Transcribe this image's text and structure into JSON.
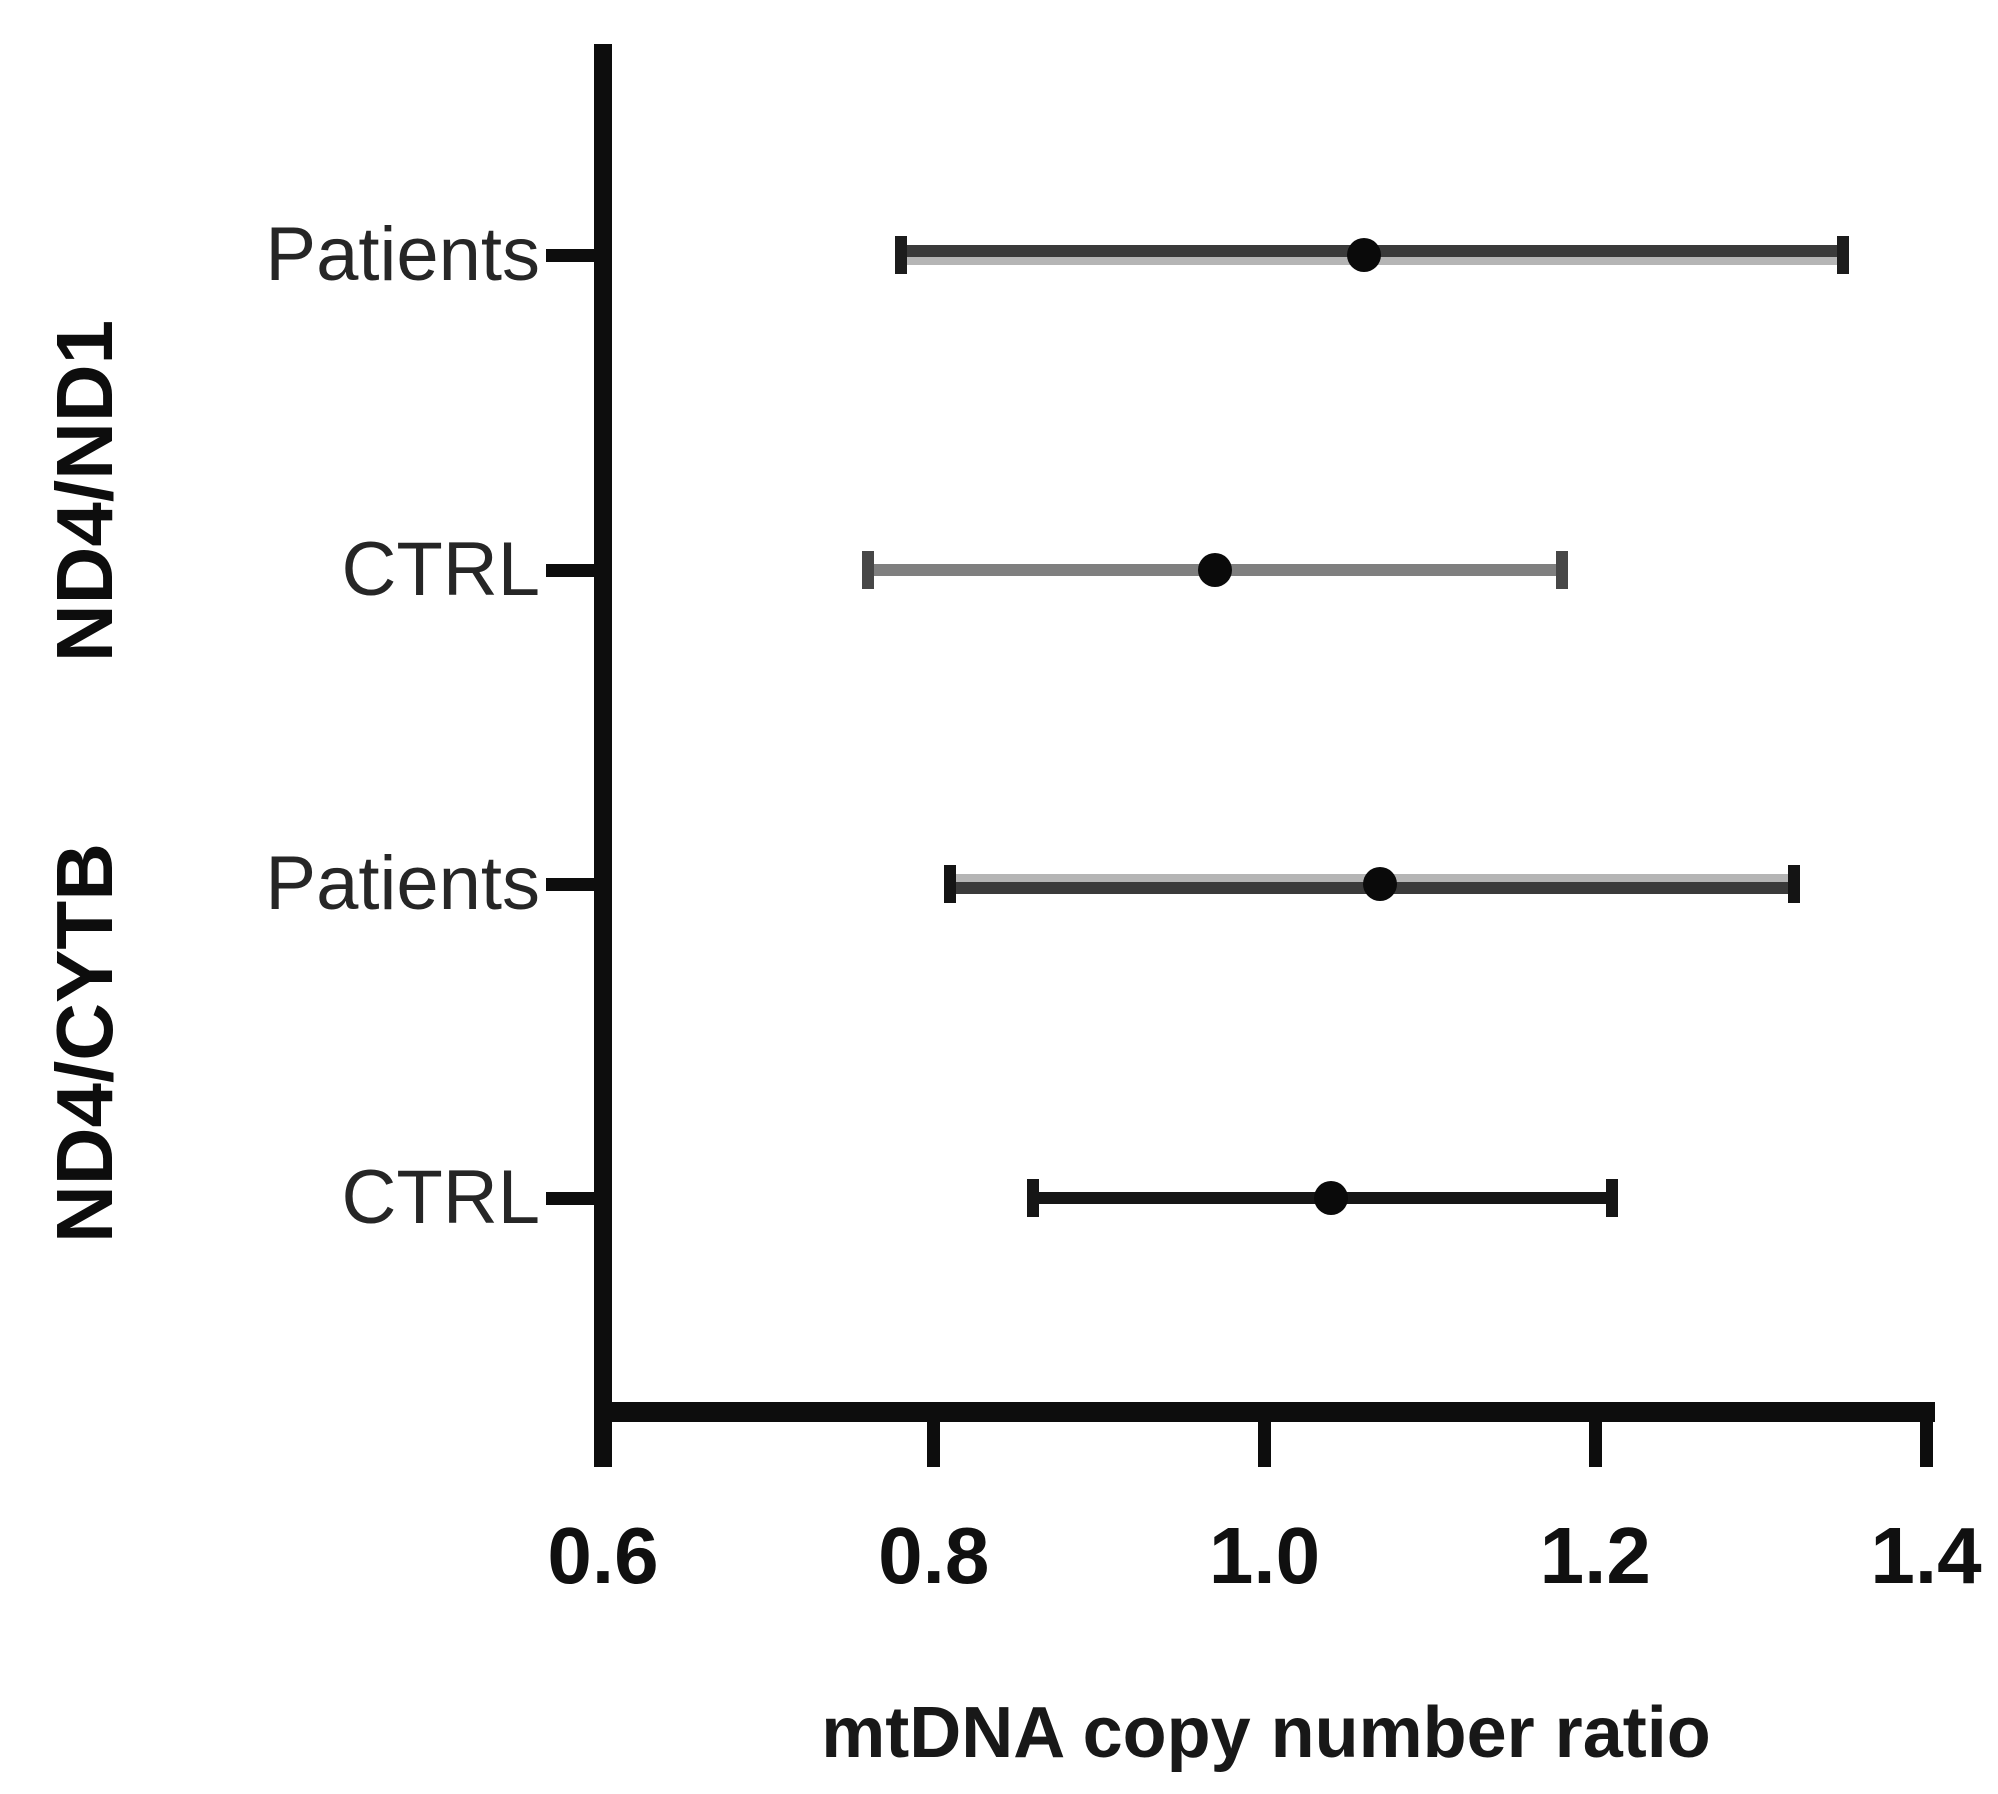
{
  "figure": {
    "background": "#ffffff",
    "axis_color": "#0d0d0d"
  },
  "chart_data": {
    "type": "scatter",
    "subtype": "horizontal-forest-errorbar",
    "title": "",
    "xlabel": "mtDNA copy number ratio",
    "ylabel": "",
    "xlim": [
      0.6,
      1.4
    ],
    "xticks": [
      "0.6",
      "0.8",
      "1.0",
      "1.2",
      "1.4"
    ],
    "grid": false,
    "legend": "none",
    "groups": [
      "ND4/ND1",
      "ND4/CYTB"
    ],
    "series": [
      {
        "group": "ND4/ND1",
        "label": "Patients",
        "mean": 1.06,
        "ci_low": 0.78,
        "ci_high": 1.35,
        "line_color": "#3a3a3a",
        "line_shadow": "#b5b5b5",
        "shadow_side": "bottom",
        "cap_color": "#1c1c1c",
        "marker_color": "#0a0a0a"
      },
      {
        "group": "ND4/ND1",
        "label": "CTRL",
        "mean": 0.97,
        "ci_low": 0.76,
        "ci_high": 1.18,
        "line_color": "#7f7f7f",
        "line_shadow": "",
        "shadow_side": "",
        "cap_color": "#474747",
        "marker_color": "#0a0a0a"
      },
      {
        "group": "ND4/CYTB",
        "label": "Patients",
        "mean": 1.07,
        "ci_low": 0.81,
        "ci_high": 1.32,
        "line_color": "#3a3a3a",
        "line_shadow": "#b5b5b5",
        "shadow_side": "top",
        "cap_color": "#141414",
        "marker_color": "#0a0a0a"
      },
      {
        "group": "ND4/CYTB",
        "label": "CTRL",
        "mean": 1.04,
        "ci_low": 0.86,
        "ci_high": 1.21,
        "line_color": "#161616",
        "line_shadow": "",
        "shadow_side": "",
        "cap_color": "#161616",
        "marker_color": "#0a0a0a"
      }
    ]
  }
}
